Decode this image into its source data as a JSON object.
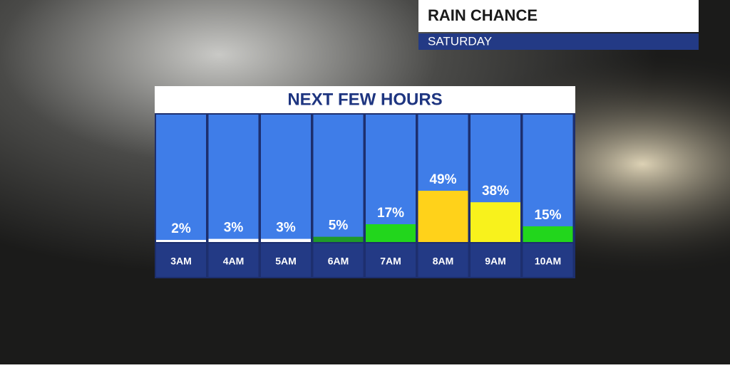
{
  "chart_data": {
    "type": "bar",
    "title": "RAIN CHANCE",
    "subtitle": "SATURDAY",
    "heading": "NEXT FEW HOURS",
    "categories": [
      "3AM",
      "4AM",
      "5AM",
      "6AM",
      "7AM",
      "8AM",
      "9AM",
      "10AM"
    ],
    "values": [
      2,
      3,
      3,
      5,
      17,
      49,
      38,
      15
    ],
    "value_labels": [
      "2%",
      "3%",
      "3%",
      "5%",
      "17%",
      "49%",
      "38%",
      "15%"
    ],
    "colors": [
      "#ffffff",
      "#ffffff",
      "#ffffff",
      "#1f9a2a",
      "#22d61c",
      "#ffd21a",
      "#f8f21c",
      "#22d61c"
    ],
    "ylim": [
      0,
      100
    ]
  }
}
